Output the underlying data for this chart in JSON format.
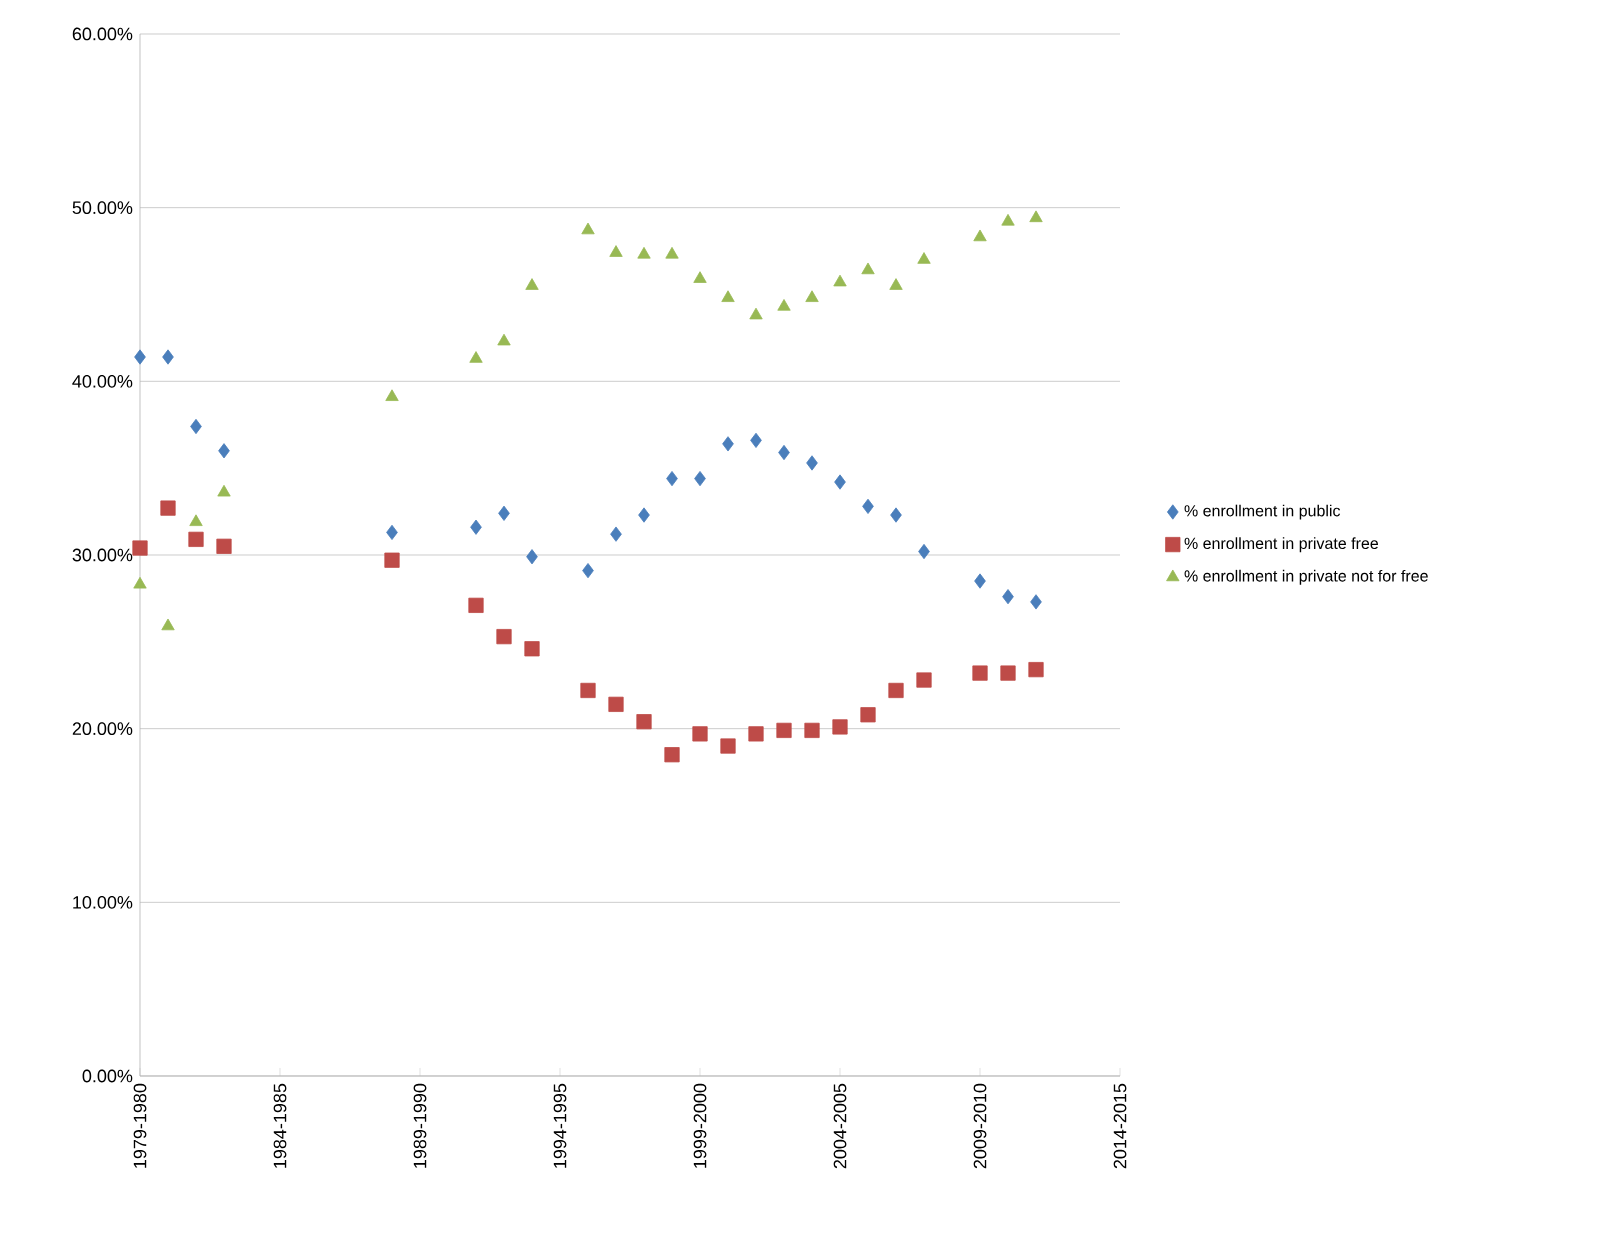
{
  "chart_data": {
    "type": "scatter",
    "ylim": [
      0,
      60
    ],
    "yticks": [
      {
        "value": 0,
        "label": "0.00%"
      },
      {
        "value": 10,
        "label": "10.00%"
      },
      {
        "value": 20,
        "label": "20.00%"
      },
      {
        "value": 30,
        "label": "30.00%"
      },
      {
        "value": 40,
        "label": "40.00%"
      },
      {
        "value": 50,
        "label": "50.00%"
      },
      {
        "value": 60,
        "label": "60.00%"
      }
    ],
    "categories": [
      "1979-1980",
      null,
      null,
      null,
      null,
      "1984-1985",
      null,
      null,
      null,
      null,
      "1989-1990",
      null,
      null,
      null,
      null,
      "1994-1995",
      null,
      null,
      null,
      null,
      "1999-2000",
      null,
      null,
      null,
      null,
      "2004-2005",
      null,
      null,
      null,
      null,
      "2009-2010",
      null,
      null,
      null,
      null,
      "2014-2015"
    ],
    "grid": "y",
    "legend": "right",
    "series": [
      {
        "name": "% enrollment in public",
        "color": "#4a7ebb",
        "marker": "diamond",
        "values": [
          41.4,
          41.4,
          37.4,
          36.0,
          null,
          null,
          null,
          null,
          null,
          31.3,
          null,
          null,
          31.6,
          32.4,
          29.9,
          null,
          29.1,
          31.2,
          32.3,
          34.4,
          34.4,
          36.4,
          36.6,
          35.9,
          35.3,
          34.2,
          32.8,
          32.3,
          30.2,
          null,
          28.5,
          27.6,
          27.3,
          null,
          null,
          null
        ]
      },
      {
        "name": "% enrollment in private free",
        "color": "#be4b48",
        "marker": "square",
        "values": [
          30.4,
          32.7,
          30.9,
          30.5,
          null,
          null,
          null,
          null,
          null,
          29.7,
          null,
          null,
          27.1,
          25.3,
          24.6,
          null,
          22.2,
          21.4,
          20.4,
          18.5,
          19.7,
          19.0,
          19.7,
          19.9,
          19.9,
          20.1,
          20.8,
          22.2,
          22.8,
          null,
          23.2,
          23.2,
          23.4,
          null,
          null,
          null
        ]
      },
      {
        "name": "% enrollment in private not for free",
        "color": "#98b954",
        "marker": "triangle",
        "values": [
          28.3,
          25.9,
          31.9,
          33.6,
          null,
          null,
          null,
          null,
          null,
          39.1,
          null,
          null,
          41.3,
          42.3,
          45.5,
          null,
          48.7,
          47.4,
          47.3,
          47.3,
          45.9,
          44.8,
          43.8,
          44.3,
          44.8,
          45.7,
          46.4,
          45.5,
          47.0,
          null,
          48.3,
          49.2,
          49.4,
          null,
          null,
          null
        ]
      }
    ]
  }
}
